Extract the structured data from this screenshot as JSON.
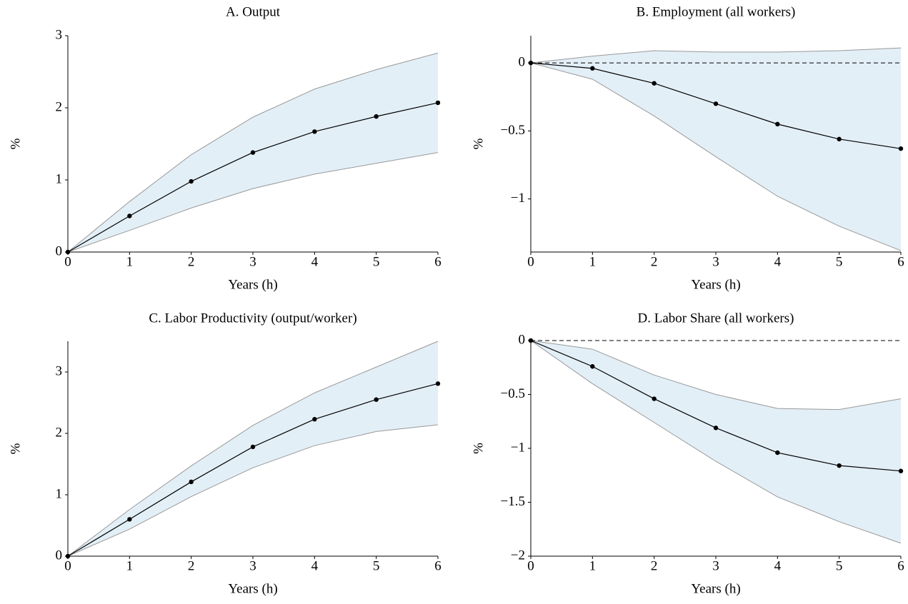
{
  "chart_data": [
    {
      "type": "line",
      "title": "A. Output",
      "xlabel": "Years (h)",
      "ylabel": "%",
      "x": [
        0,
        1,
        2,
        3,
        4,
        5,
        6
      ],
      "xlim": [
        0,
        6
      ],
      "xticks": [
        0,
        1,
        2,
        3,
        4,
        5,
        6
      ],
      "ylim": [
        0,
        3
      ],
      "yticks": [
        0,
        1,
        2,
        3
      ],
      "values": [
        0,
        0.5,
        0.98,
        1.38,
        1.67,
        1.88,
        2.07
      ],
      "upper": [
        0,
        0.7,
        1.35,
        1.87,
        2.26,
        2.53,
        2.76
      ],
      "lower": [
        0,
        0.3,
        0.61,
        0.88,
        1.08,
        1.23,
        1.38
      ],
      "color": "#000000",
      "band_color": "#e3eff7",
      "band_edge_color": "#999999"
    },
    {
      "type": "line",
      "title": "B. Employment (all workers)",
      "xlabel": "Years (h)",
      "ylabel": "%",
      "x": [
        0,
        1,
        2,
        3,
        4,
        5,
        6
      ],
      "xlim": [
        0,
        6
      ],
      "xticks": [
        0,
        1,
        2,
        3,
        4,
        5,
        6
      ],
      "ylim": [
        -1.39,
        0.2
      ],
      "yticks": [
        {
          "value": -1,
          "label": "−1"
        },
        {
          "value": -0.5,
          "label": "−0.5"
        },
        0
      ],
      "values": [
        0,
        -0.04,
        -0.15,
        -0.3,
        -0.45,
        -0.56,
        -0.63
      ],
      "upper": [
        0,
        0.05,
        0.09,
        0.08,
        0.08,
        0.09,
        0.11
      ],
      "lower": [
        0,
        -0.12,
        -0.39,
        -0.69,
        -0.98,
        -1.2,
        -1.38
      ],
      "reference_line": 0,
      "color": "#000000",
      "band_color": "#e3eff7",
      "band_edge_color": "#999999"
    },
    {
      "type": "line",
      "title": "C. Labor Productivity (output/worker)",
      "xlabel": "Years (h)",
      "ylabel": "%",
      "x": [
        0,
        1,
        2,
        3,
        4,
        5,
        6
      ],
      "xlim": [
        0,
        6
      ],
      "xticks": [
        0,
        1,
        2,
        3,
        4,
        5,
        6
      ],
      "ylim": [
        0,
        3.5
      ],
      "yticks": [
        0,
        1,
        2,
        3
      ],
      "values": [
        0,
        0.6,
        1.21,
        1.78,
        2.23,
        2.55,
        2.81
      ],
      "upper": [
        0,
        0.76,
        1.47,
        2.13,
        2.66,
        3.08,
        3.5
      ],
      "lower": [
        0,
        0.44,
        0.97,
        1.44,
        1.8,
        2.03,
        2.14
      ],
      "color": "#000000",
      "band_color": "#e3eff7",
      "band_edge_color": "#999999"
    },
    {
      "type": "line",
      "title": "D. Labor Share (all workers)",
      "xlabel": "Years (h)",
      "ylabel": "%",
      "x": [
        0,
        1,
        2,
        3,
        4,
        5,
        6
      ],
      "xlim": [
        0,
        6
      ],
      "xticks": [
        0,
        1,
        2,
        3,
        4,
        5,
        6
      ],
      "ylim": [
        -2,
        0
      ],
      "yticks": [
        {
          "value": -2,
          "label": "−2"
        },
        {
          "value": -1.5,
          "label": "−1.5"
        },
        {
          "value": -1,
          "label": "−1"
        },
        {
          "value": -0.5,
          "label": "−0.5"
        },
        0
      ],
      "values": [
        0,
        -0.24,
        -0.54,
        -0.81,
        -1.04,
        -1.16,
        -1.21
      ],
      "upper": [
        0,
        -0.08,
        -0.32,
        -0.5,
        -0.63,
        -0.64,
        -0.54
      ],
      "lower": [
        0,
        -0.4,
        -0.76,
        -1.12,
        -1.45,
        -1.68,
        -1.88
      ],
      "reference_line": 0,
      "color": "#000000",
      "band_color": "#e3eff7",
      "band_edge_color": "#999999"
    }
  ]
}
